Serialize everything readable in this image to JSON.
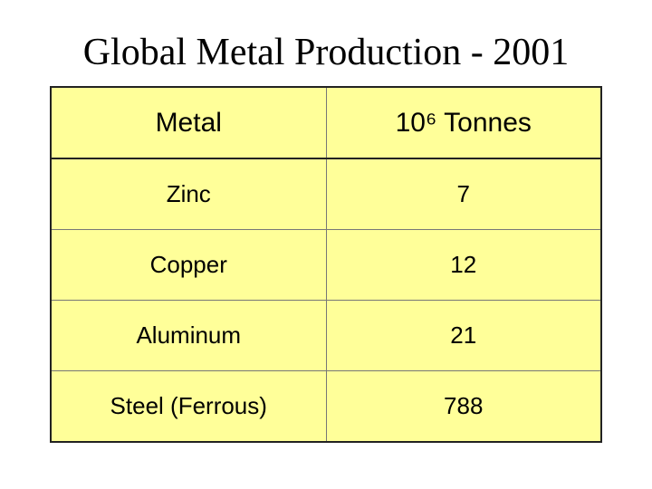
{
  "header": {
    "title": "Global Metal Production - 2001"
  },
  "table": {
    "columns": [
      "Metal",
      "10⁶ Tonnes"
    ],
    "rows": [
      [
        "Zinc",
        7
      ],
      [
        "Copper",
        12
      ],
      [
        "Aluminum",
        21
      ],
      [
        "Steel (Ferrous)",
        788
      ]
    ]
  }
}
